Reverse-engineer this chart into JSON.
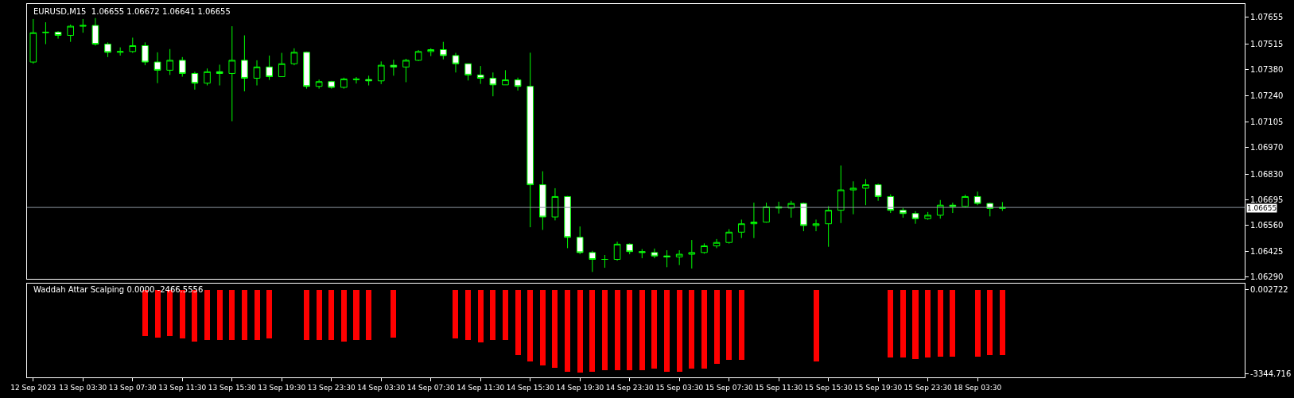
{
  "chart_data": [
    {
      "type": "candlestick",
      "title": "EURUSD,M15  1.06655 1.06672 1.06641 1.06655",
      "color": "#00ff00",
      "tick_labels": "y",
      "ohlc": [
        [
          1.07419,
          1.07645,
          1.0741,
          1.07573
        ],
        [
          1.07573,
          1.07628,
          1.07513,
          1.07576
        ],
        [
          1.07576,
          1.07581,
          1.07542,
          1.07559
        ],
        [
          1.07559,
          1.07616,
          1.07525,
          1.07607
        ],
        [
          1.07607,
          1.07645,
          1.07573,
          1.07611
        ],
        [
          1.07611,
          1.0765,
          1.07505,
          1.07513
        ],
        [
          1.07513,
          1.07522,
          1.07445,
          1.0747
        ],
        [
          1.0747,
          1.07496,
          1.07453,
          1.07474
        ],
        [
          1.07474,
          1.07547,
          1.07467,
          1.07505
        ],
        [
          1.07505,
          1.07522,
          1.07402,
          1.07419
        ],
        [
          1.07419,
          1.0747,
          1.07308,
          1.07376
        ],
        [
          1.07376,
          1.07487,
          1.07351,
          1.07428
        ],
        [
          1.07428,
          1.07445,
          1.07342,
          1.07359
        ],
        [
          1.07359,
          1.07368,
          1.07274,
          1.07308
        ],
        [
          1.07308,
          1.07385,
          1.07296,
          1.07368
        ],
        [
          1.07368,
          1.07405,
          1.07296,
          1.07359
        ],
        [
          1.07359,
          1.07607,
          1.07108,
          1.07428
        ],
        [
          1.07428,
          1.07559,
          1.07265,
          1.07334
        ],
        [
          1.07334,
          1.07428,
          1.07296,
          1.07393
        ],
        [
          1.07393,
          1.07453,
          1.07325,
          1.07342
        ],
        [
          1.07342,
          1.07467,
          1.07342,
          1.0741
        ],
        [
          1.0741,
          1.07491,
          1.07402,
          1.0747
        ],
        [
          1.0747,
          1.07474,
          1.07279,
          1.07291
        ],
        [
          1.07291,
          1.07327,
          1.07279,
          1.07316
        ],
        [
          1.07316,
          1.0732,
          1.07279,
          1.07286
        ],
        [
          1.07286,
          1.07337,
          1.07279,
          1.0733
        ],
        [
          1.0733,
          1.0734,
          1.07306,
          1.07327
        ],
        [
          1.07327,
          1.07347,
          1.07296,
          1.0732
        ],
        [
          1.0732,
          1.07422,
          1.07303,
          1.07402
        ],
        [
          1.07402,
          1.07431,
          1.07347,
          1.07393
        ],
        [
          1.07393,
          1.07436,
          1.07313,
          1.07428
        ],
        [
          1.07428,
          1.07482,
          1.07424,
          1.07474
        ],
        [
          1.07474,
          1.07491,
          1.0745,
          1.07484
        ],
        [
          1.07484,
          1.07525,
          1.07433,
          1.07453
        ],
        [
          1.07453,
          1.07467,
          1.07364,
          1.0741
        ],
        [
          1.0741,
          1.0741,
          1.07322,
          1.07351
        ],
        [
          1.07351,
          1.07398,
          1.07304,
          1.07334
        ],
        [
          1.07334,
          1.07364,
          1.07239,
          1.07299
        ],
        [
          1.07299,
          1.07376,
          1.07299,
          1.07325
        ],
        [
          1.07325,
          1.07337,
          1.07269,
          1.07291
        ],
        [
          1.07291,
          1.07468,
          1.06551,
          1.06774
        ],
        [
          1.06774,
          1.06845,
          1.06537,
          1.06605
        ],
        [
          1.06605,
          1.06756,
          1.06587,
          1.06712
        ],
        [
          1.06712,
          1.06715,
          1.06441,
          1.06498
        ],
        [
          1.06498,
          1.06555,
          1.06409,
          1.06418
        ],
        [
          1.06418,
          1.06427,
          1.06316,
          1.06382
        ],
        [
          1.06382,
          1.06405,
          1.06338,
          1.06382
        ],
        [
          1.06382,
          1.06475,
          1.06375,
          1.06462
        ],
        [
          1.06462,
          1.06466,
          1.06409,
          1.06423
        ],
        [
          1.06423,
          1.06436,
          1.06388,
          1.06418
        ],
        [
          1.06418,
          1.06439,
          1.06388,
          1.064
        ],
        [
          1.064,
          1.0643,
          1.06341,
          1.06395
        ],
        [
          1.06395,
          1.0643,
          1.06352,
          1.06409
        ],
        [
          1.06409,
          1.06484,
          1.06334,
          1.06418
        ],
        [
          1.06418,
          1.06466,
          1.06412,
          1.06453
        ],
        [
          1.06453,
          1.06489,
          1.06441,
          1.06471
        ],
        [
          1.06471,
          1.06541,
          1.06465,
          1.06525
        ],
        [
          1.06525,
          1.06591,
          1.06494,
          1.06569
        ],
        [
          1.06569,
          1.0668,
          1.06494,
          1.06578
        ],
        [
          1.06578,
          1.0668,
          1.06575,
          1.06658
        ],
        [
          1.06658,
          1.06685,
          1.06623,
          1.06652
        ],
        [
          1.06652,
          1.0669,
          1.06601,
          1.06676
        ],
        [
          1.06676,
          1.0668,
          1.0653,
          1.0656
        ],
        [
          1.0656,
          1.06591,
          1.0653,
          1.06569
        ],
        [
          1.06569,
          1.06662,
          1.06448,
          1.0664
        ],
        [
          1.0664,
          1.06875,
          1.06573,
          1.06747
        ],
        [
          1.06747,
          1.06792,
          1.06619,
          1.06756
        ],
        [
          1.06756,
          1.06804,
          1.06667,
          1.06774
        ],
        [
          1.06774,
          1.0678,
          1.0669,
          1.06712
        ],
        [
          1.06712,
          1.06724,
          1.06626,
          1.0664
        ],
        [
          1.0664,
          1.06653,
          1.06601,
          1.06623
        ],
        [
          1.06623,
          1.06635,
          1.06569,
          1.06596
        ],
        [
          1.06596,
          1.06631,
          1.0659,
          1.06614
        ],
        [
          1.06614,
          1.06694,
          1.06596,
          1.06667
        ],
        [
          1.06667,
          1.0668,
          1.06626,
          1.0666
        ],
        [
          1.0666,
          1.06722,
          1.06655,
          1.06712
        ],
        [
          1.06712,
          1.06738,
          1.06667,
          1.06676
        ],
        [
          1.06676,
          1.0668,
          1.06608,
          1.0665
        ],
        [
          1.0665,
          1.06683,
          1.06637,
          1.06655
        ],
        null,
        null,
        null,
        null,
        null,
        null,
        null,
        null,
        null,
        null,
        null,
        null,
        null,
        null,
        null,
        null,
        null,
        null,
        null
      ],
      "ylim": [
        1.0628,
        1.07724
      ],
      "yticks": [
        {
          "value": 1.0629,
          "label": "1.06290"
        },
        1.06425,
        {
          "value": 1.0656,
          "label": "1.06560"
        },
        1.06695,
        {
          "value": 1.0683,
          "label": "1.06830"
        },
        {
          "value": 1.0697,
          "label": "1.06970"
        },
        1.07105,
        {
          "value": 1.0724,
          "label": "1.07240"
        },
        {
          "value": 1.0738,
          "label": "1.07380"
        },
        1.07515,
        1.07655
      ],
      "ref_lines": [
        {
          "axis": "y",
          "value": 1.06655,
          "label": "1.06655",
          "color": "#8c96a0"
        }
      ]
    },
    {
      "type": "bar",
      "title": "Waddah Attar Scalping 0.0000 -2466.5556",
      "color": "#ff0000",
      "categories": [
        "12 Sep 2023",
        null,
        null,
        null,
        "13 Sep 03:30",
        null,
        null,
        null,
        "13 Sep 07:30",
        null,
        null,
        null,
        "13 Sep 11:30",
        null,
        null,
        null,
        "13 Sep 15:30",
        null,
        null,
        null,
        "13 Sep 19:30",
        null,
        null,
        null,
        "13 Sep 23:30",
        null,
        null,
        null,
        "14 Sep 03:30",
        null,
        null,
        null,
        "14 Sep 07:30",
        null,
        null,
        null,
        "14 Sep 11:30",
        null,
        null,
        null,
        "14 Sep 15:30",
        null,
        null,
        null,
        "14 Sep 19:30",
        null,
        null,
        null,
        "14 Sep 23:30",
        null,
        null,
        null,
        "15 Sep 03:30",
        null,
        null,
        null,
        "15 Sep 07:30",
        null,
        null,
        null,
        "15 Sep 11:30",
        null,
        null,
        null,
        "15 Sep 15:30",
        null,
        null,
        null,
        "15 Sep 19:30",
        null,
        null,
        null,
        "15 Sep 23:30",
        null,
        null,
        null,
        "18 Sep 03:30",
        null,
        null,
        null,
        null,
        null,
        null,
        null,
        null,
        null,
        null,
        null,
        null,
        null,
        null,
        null,
        null,
        null,
        null,
        null,
        null,
        null
      ],
      "values": [
        null,
        null,
        null,
        null,
        null,
        null,
        null,
        null,
        null,
        -1850,
        -1900,
        -1850,
        -1950,
        -2050,
        -2000,
        -2000,
        -2000,
        -2000,
        -2000,
        -1950,
        null,
        null,
        -2000,
        -2000,
        -2000,
        -2050,
        -2000,
        -2000,
        null,
        -1900,
        null,
        null,
        null,
        null,
        -1950,
        -2000,
        -2100,
        -2000,
        -2000,
        -2600,
        -2850,
        -3000,
        -3100,
        -3250,
        -3300,
        -3250,
        -3200,
        -3200,
        -3200,
        -3200,
        -3150,
        -3250,
        -3250,
        -3150,
        -3150,
        -2950,
        -2800,
        -2800,
        null,
        null,
        null,
        null,
        null,
        -2850,
        null,
        null,
        null,
        null,
        null,
        -2700,
        -2700,
        -2750,
        -2700,
        -2650,
        -2650,
        null,
        -2650,
        -2600,
        -2600,
        null,
        null,
        null,
        null,
        null,
        null,
        null,
        null,
        null,
        null,
        null,
        null,
        null,
        null,
        null,
        null,
        null,
        null,
        null
      ],
      "ylim": [
        -3500,
        250
      ],
      "yticks": [
        0.002722,
        -3344.716
      ]
    }
  ]
}
